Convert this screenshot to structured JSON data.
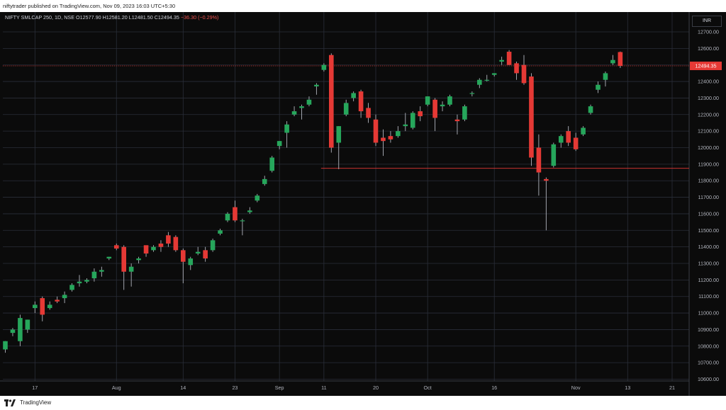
{
  "header": {
    "publisher": "niftytrader published on TradingView.com, Nov 09, 2023 16:03 UTC+5:30"
  },
  "legend": {
    "symbol": "NIFTY SMLCAP 250, 1D, NSE",
    "open": "O12577.90",
    "high": "H12581.20",
    "low": "L12481.50",
    "close": "C12494.35",
    "change": "−36.30 (−0.29%)"
  },
  "currency_button": "INR",
  "footer": {
    "brand": "TradingView"
  },
  "colors": {
    "up": "#26a65b",
    "down": "#e53935",
    "background": "#0b0b0b",
    "grid": "#2a2e39",
    "price_label": "#e53935"
  },
  "chart_data": {
    "type": "candlestick",
    "symbol": "NIFTY SMLCAP 250",
    "interval": "1D",
    "exchange": "NSE",
    "ylim": [
      10600,
      12800
    ],
    "y_ticks": [
      12700,
      12600,
      12500,
      12400,
      12300,
      12200,
      12100,
      12000,
      11900,
      11800,
      11700,
      11600,
      11500,
      11400,
      11300,
      11200,
      11100,
      11000,
      10900,
      10800,
      10700,
      10600
    ],
    "y_tick_labels": [
      "12700.00",
      "12600.00",
      "12500.00",
      "12400.00",
      "12300.00",
      "12200.00",
      "12100.00",
      "12000.00",
      "11900.00",
      "11800.00",
      "11700.00",
      "11600.00",
      "11500.00",
      "11400.00",
      "11300.00",
      "11200.00",
      "11100.00",
      "11000.00",
      "10900.00",
      "10800.00",
      "10700.00",
      "10600.00"
    ],
    "x_labels": [
      {
        "label": "17",
        "index": 4
      },
      {
        "label": "Aug",
        "index": 15
      },
      {
        "label": "14",
        "index": 24
      },
      {
        "label": "23",
        "index": 31
      },
      {
        "label": "Sep",
        "index": 37
      },
      {
        "label": "11",
        "index": 43
      },
      {
        "label": "20",
        "index": 50
      },
      {
        "label": "Oct",
        "index": 57
      },
      {
        "label": "16",
        "index": 66
      },
      {
        "label": "Nov",
        "index": 77
      },
      {
        "label": "13",
        "index": 84
      },
      {
        "label": "21",
        "index": 90
      }
    ],
    "last_price": "12494.35",
    "last_price_value": 12494.35,
    "support_level": 11875,
    "support_from_index": 43,
    "candles": [
      {
        "o": 10780,
        "h": 10830,
        "l": 10760,
        "c": 10830
      },
      {
        "o": 10880,
        "h": 10910,
        "l": 10860,
        "c": 10900
      },
      {
        "o": 10830,
        "h": 10990,
        "l": 10800,
        "c": 10970
      },
      {
        "o": 10900,
        "h": 10960,
        "l": 10880,
        "c": 10960
      },
      {
        "o": 11030,
        "h": 11070,
        "l": 11000,
        "c": 11050
      },
      {
        "o": 11090,
        "h": 11100,
        "l": 10950,
        "c": 10990
      },
      {
        "o": 11030,
        "h": 11070,
        "l": 11020,
        "c": 11050
      },
      {
        "o": 11080,
        "h": 11100,
        "l": 11060,
        "c": 11070
      },
      {
        "o": 11090,
        "h": 11130,
        "l": 11060,
        "c": 11110
      },
      {
        "o": 11140,
        "h": 11180,
        "l": 11130,
        "c": 11170
      },
      {
        "o": 11180,
        "h": 11230,
        "l": 11160,
        "c": 11190
      },
      {
        "o": 11190,
        "h": 11210,
        "l": 11180,
        "c": 11200
      },
      {
        "o": 11210,
        "h": 11270,
        "l": 11190,
        "c": 11250
      },
      {
        "o": 11250,
        "h": 11280,
        "l": 11220,
        "c": 11260
      },
      {
        "o": 11330,
        "h": 11340,
        "l": 11320,
        "c": 11340
      },
      {
        "o": 11410,
        "h": 11420,
        "l": 11380,
        "c": 11390
      },
      {
        "o": 11400,
        "h": 11410,
        "l": 11140,
        "c": 11250
      },
      {
        "o": 11250,
        "h": 11300,
        "l": 11160,
        "c": 11280
      },
      {
        "o": 11320,
        "h": 11340,
        "l": 11300,
        "c": 11330
      },
      {
        "o": 11410,
        "h": 11400,
        "l": 11340,
        "c": 11360
      },
      {
        "o": 11380,
        "h": 11410,
        "l": 11370,
        "c": 11400
      },
      {
        "o": 11420,
        "h": 11440,
        "l": 11370,
        "c": 11400
      },
      {
        "o": 11470,
        "h": 11490,
        "l": 11400,
        "c": 11420
      },
      {
        "o": 11460,
        "h": 11470,
        "l": 11370,
        "c": 11380
      },
      {
        "o": 11380,
        "h": 11390,
        "l": 11180,
        "c": 11310
      },
      {
        "o": 11290,
        "h": 11340,
        "l": 11260,
        "c": 11330
      },
      {
        "o": 11360,
        "h": 11400,
        "l": 11350,
        "c": 11370
      },
      {
        "o": 11380,
        "h": 11400,
        "l": 11310,
        "c": 11330
      },
      {
        "o": 11380,
        "h": 11450,
        "l": 11370,
        "c": 11440
      },
      {
        "o": 11480,
        "h": 11510,
        "l": 11470,
        "c": 11500
      },
      {
        "o": 11560,
        "h": 11610,
        "l": 11550,
        "c": 11600
      },
      {
        "o": 11640,
        "h": 11680,
        "l": 11550,
        "c": 11560
      },
      {
        "o": 11560,
        "h": 11570,
        "l": 11470,
        "c": 11560
      },
      {
        "o": 11610,
        "h": 11640,
        "l": 11600,
        "c": 11620
      },
      {
        "o": 11680,
        "h": 11720,
        "l": 11670,
        "c": 11710
      },
      {
        "o": 11780,
        "h": 11830,
        "l": 11770,
        "c": 11810
      },
      {
        "o": 11860,
        "h": 11950,
        "l": 11850,
        "c": 11940
      },
      {
        "o": 12010,
        "h": 12040,
        "l": 11990,
        "c": 12040
      },
      {
        "o": 12090,
        "h": 12160,
        "l": 12000,
        "c": 12140
      },
      {
        "o": 12200,
        "h": 12250,
        "l": 12190,
        "c": 12220
      },
      {
        "o": 12240,
        "h": 12260,
        "l": 12170,
        "c": 12250
      },
      {
        "o": 12260,
        "h": 12310,
        "l": 12250,
        "c": 12290
      },
      {
        "o": 12370,
        "h": 12390,
        "l": 12320,
        "c": 12380
      },
      {
        "o": 12470,
        "h": 12510,
        "l": 12460,
        "c": 12500
      },
      {
        "o": 12560,
        "h": 12570,
        "l": 11970,
        "c": 12000
      },
      {
        "o": 12030,
        "h": 12130,
        "l": 11870,
        "c": 12130
      },
      {
        "o": 12200,
        "h": 12290,
        "l": 12190,
        "c": 12270
      },
      {
        "o": 12300,
        "h": 12340,
        "l": 12280,
        "c": 12330
      },
      {
        "o": 12340,
        "h": 12350,
        "l": 12180,
        "c": 12220
      },
      {
        "o": 12240,
        "h": 12270,
        "l": 12150,
        "c": 12180
      },
      {
        "o": 12170,
        "h": 12200,
        "l": 12010,
        "c": 12030
      },
      {
        "o": 12060,
        "h": 12110,
        "l": 11950,
        "c": 12040
      },
      {
        "o": 12070,
        "h": 12100,
        "l": 12030,
        "c": 12050
      },
      {
        "o": 12070,
        "h": 12130,
        "l": 12060,
        "c": 12100
      },
      {
        "o": 12130,
        "h": 12210,
        "l": 12100,
        "c": 12140
      },
      {
        "o": 12120,
        "h": 12220,
        "l": 12110,
        "c": 12210
      },
      {
        "o": 12220,
        "h": 12250,
        "l": 12160,
        "c": 12190
      },
      {
        "o": 12260,
        "h": 12310,
        "l": 12250,
        "c": 12310
      },
      {
        "o": 12290,
        "h": 12300,
        "l": 12100,
        "c": 12180
      },
      {
        "o": 12250,
        "h": 12280,
        "l": 12220,
        "c": 12260
      },
      {
        "o": 12260,
        "h": 12320,
        "l": 12250,
        "c": 12310
      },
      {
        "o": 12170,
        "h": 12200,
        "l": 12080,
        "c": 12160
      },
      {
        "o": 12170,
        "h": 12260,
        "l": 12160,
        "c": 12250
      },
      {
        "o": 12330,
        "h": 12340,
        "l": 12310,
        "c": 12330
      },
      {
        "o": 12380,
        "h": 12420,
        "l": 12360,
        "c": 12410
      },
      {
        "o": 12410,
        "h": 12440,
        "l": 12400,
        "c": 12410
      },
      {
        "o": 12440,
        "h": 12450,
        "l": 12430,
        "c": 12450
      },
      {
        "o": 12520,
        "h": 12550,
        "l": 12500,
        "c": 12530
      },
      {
        "o": 12580,
        "h": 12590,
        "l": 12500,
        "c": 12500
      },
      {
        "o": 12510,
        "h": 12520,
        "l": 12410,
        "c": 12450
      },
      {
        "o": 12500,
        "h": 12560,
        "l": 12380,
        "c": 12390
      },
      {
        "o": 12430,
        "h": 12450,
        "l": 11890,
        "c": 11940
      },
      {
        "o": 12000,
        "h": 12080,
        "l": 11710,
        "c": 11850
      },
      {
        "o": 11810,
        "h": 11820,
        "l": 11500,
        "c": 11800
      },
      {
        "o": 11890,
        "h": 12030,
        "l": 11880,
        "c": 12020
      },
      {
        "o": 12030,
        "h": 12080,
        "l": 12000,
        "c": 12070
      },
      {
        "o": 12100,
        "h": 12130,
        "l": 12010,
        "c": 12030
      },
      {
        "o": 12060,
        "h": 12090,
        "l": 11980,
        "c": 11990
      },
      {
        "o": 12080,
        "h": 12130,
        "l": 12070,
        "c": 12120
      },
      {
        "o": 12210,
        "h": 12260,
        "l": 12200,
        "c": 12250
      },
      {
        "o": 12350,
        "h": 12400,
        "l": 12330,
        "c": 12380
      },
      {
        "o": 12410,
        "h": 12460,
        "l": 12370,
        "c": 12450
      },
      {
        "o": 12510,
        "h": 12560,
        "l": 12500,
        "c": 12530
      },
      {
        "o": 12577.9,
        "h": 12581.2,
        "l": 12481.5,
        "c": 12494.35
      }
    ]
  }
}
